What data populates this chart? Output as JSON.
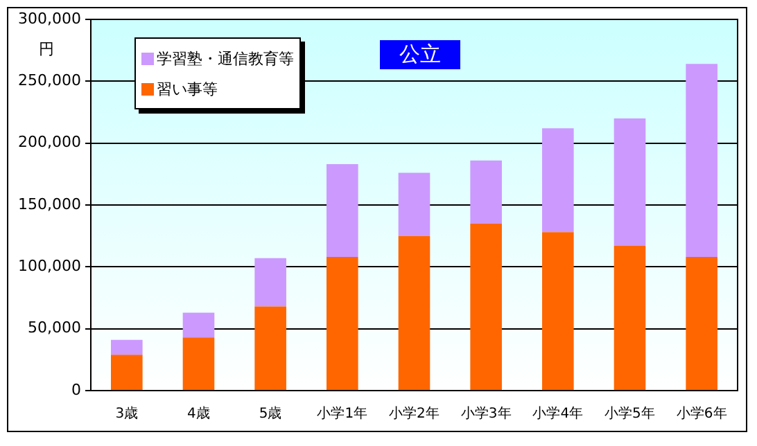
{
  "chart_data": {
    "type": "bar",
    "title": "公立",
    "ylabel": "円",
    "stacked": true,
    "legend": "top left",
    "grid": "y",
    "categories": [
      "3歳",
      "4歳",
      "5歳",
      "小学1年",
      "小学2年",
      "小学3年",
      "小学4年",
      "小学5年",
      "小学6年"
    ],
    "series": [
      {
        "name": "習い事等",
        "color": "#ff6600",
        "values": [
          29000,
          43000,
          68000,
          108000,
          125000,
          135000,
          128000,
          117000,
          108000
        ]
      },
      {
        "name": "学習塾・通信教育等",
        "color": "#cc99ff",
        "values": [
          12000,
          20000,
          39000,
          75000,
          51000,
          51000,
          84000,
          103000,
          156000
        ]
      }
    ],
    "ylim": [
      0,
      300000
    ],
    "yticks": [
      0,
      {
        "value": 50000,
        "label": "50,000"
      },
      {
        "value": 100000,
        "label": "100,000"
      },
      {
        "value": 150000,
        "label": "150,000"
      },
      {
        "value": 200000,
        "label": "200,000"
      },
      {
        "value": 250000,
        "label": "250,000"
      },
      {
        "value": 300000,
        "label": "300,000"
      }
    ]
  }
}
